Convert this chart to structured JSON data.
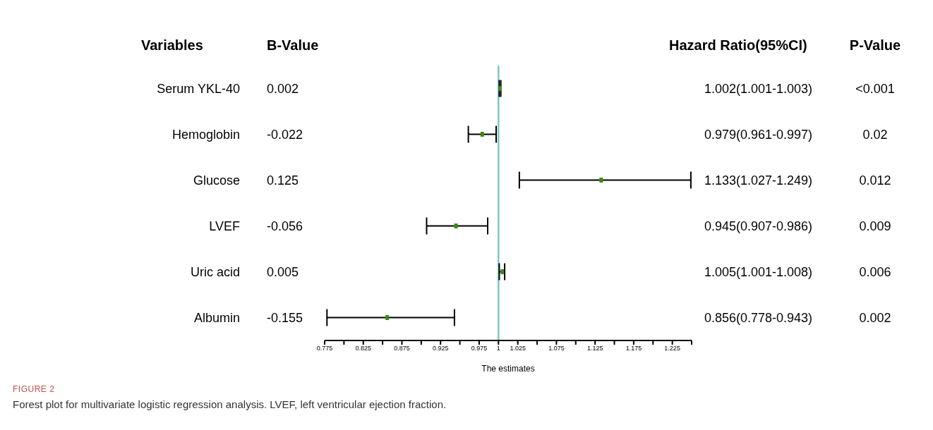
{
  "chart_data": {
    "type": "scatter",
    "title": "FIGURE 2",
    "subtitle": "Forest plot for multivariate logistic regression analysis. LVEF, left ventricular ejection fraction.",
    "orientation": "horizontal",
    "xlabel": "The estimates",
    "categories": [
      "Serum YKL-40",
      "Hemoglobin",
      "Glucose",
      "LVEF",
      "Uric acid",
      "Albumin"
    ],
    "values": [
      1.002,
      0.979,
      1.133,
      0.945,
      1.005,
      0.856
    ],
    "errors": [
      [
        1.001,
        1.003
      ],
      [
        0.961,
        0.997
      ],
      [
        1.027,
        1.249
      ],
      [
        0.907,
        0.986
      ],
      [
        1.001,
        1.008
      ],
      [
        0.778,
        0.943
      ]
    ],
    "color": "#3d8b15",
    "marker": "square",
    "value_labels": [
      "1.002(1.001-1.003)",
      "0.979(0.961-0.997)",
      "1.133(1.027-1.249)",
      "0.945(0.907-0.986)",
      "1.005(1.001-1.008)",
      "0.856(0.778-0.943)"
    ],
    "xlim": [
      0.775,
      1.25
    ],
    "xticks": [
      0.775,
      {
        "value": 0.8,
        "label": null
      },
      0.825,
      {
        "value": 0.85,
        "label": null
      },
      0.875,
      {
        "value": 0.9,
        "label": null
      },
      0.925,
      {
        "value": 0.95,
        "label": null
      },
      0.975,
      1,
      1.025,
      {
        "value": 1.05,
        "label": null
      },
      1.075,
      {
        "value": 1.1,
        "label": null
      },
      1.125,
      {
        "value": 1.15,
        "label": null
      },
      1.175,
      {
        "value": 1.2,
        "label": null
      },
      1.225,
      {
        "value": 1.25,
        "label": null
      }
    ],
    "ref_lines": [
      {
        "axis": "x",
        "value": 1,
        "label": null,
        "color": "#7fc6cf"
      }
    ],
    "annotations": [
      "Variables",
      "B-Value",
      "Hazard Ratio(95%CI)",
      "P-Value",
      "0.002",
      "-0.022",
      "0.125",
      "-0.056",
      "0.005",
      "-0.155",
      "<0.001",
      "0.02",
      "0.012",
      "0.009",
      "0.006",
      "0.002"
    ]
  }
}
